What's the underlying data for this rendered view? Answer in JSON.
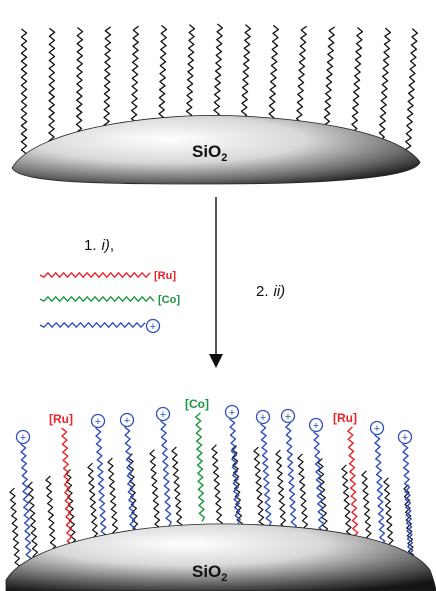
{
  "substrate": {
    "main": "SiO",
    "subscript": "2"
  },
  "steps": {
    "step1_number": "1.",
    "step1_reagent": "i)",
    "step1_suffix": ",",
    "step2_number": "2.",
    "step2_reagent": "ii)"
  },
  "legend": {
    "ru_tag": "[Ru]",
    "co_tag": "[Co]",
    "plus_symbol": "+"
  },
  "product_tags": {
    "ru_left": "[Ru]",
    "co_center": "[Co]",
    "ru_right": "[Ru]"
  },
  "colors": {
    "alkyl_chain": "#111111",
    "ru_chain": "#e8232a",
    "co_chain": "#1a9641",
    "cation_chain": "#3050b8",
    "cation_circle": "#3050b8",
    "ru_tag": "#e8232a",
    "co_tag": "#1a9641"
  }
}
